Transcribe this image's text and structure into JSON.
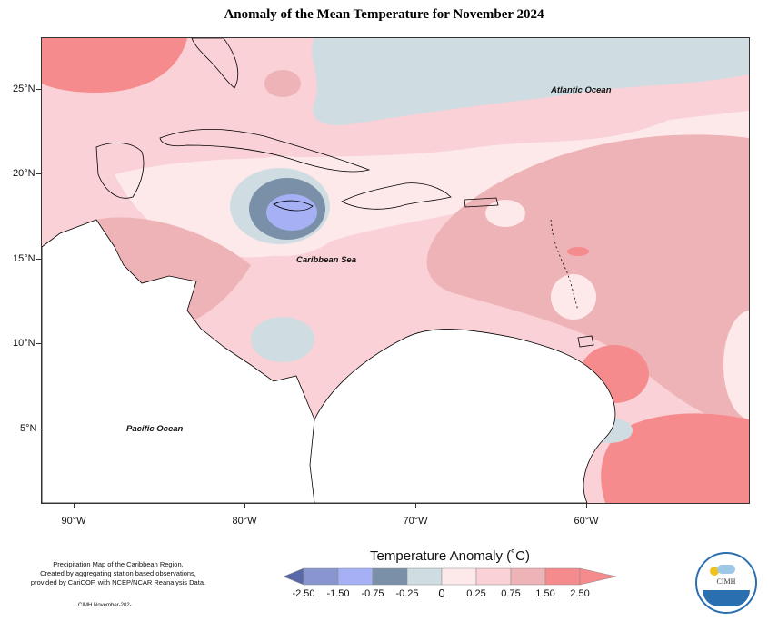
{
  "title": "Anomaly of the Mean Temperature for November 2024",
  "map": {
    "axes": {
      "lat_labels": [
        "25°N",
        "20°N",
        "15°N",
        "10°N",
        "5°N"
      ],
      "lon_labels": [
        "90°W",
        "80°W",
        "70°W",
        "60°W"
      ]
    },
    "place_labels": {
      "atlantic": "Atlantic Ocean",
      "caribbean": "Caribbean Sea",
      "pacific": "Pacific Ocean"
    },
    "colors": {
      "land_no_data": "#ffffff",
      "coastline": "#000000"
    }
  },
  "legend": {
    "title": "Temperature Anomaly (˚C)",
    "labels": [
      "-2.50",
      "-1.50",
      "-0.75",
      "-0.25",
      "0",
      "0.25",
      "0.75",
      "1.50",
      "2.50"
    ],
    "bins": [
      {
        "color": "#5868a8"
      },
      {
        "color": "#8895cf"
      },
      {
        "color": "#a6b1f5"
      },
      {
        "color": "#7a90a8"
      },
      {
        "color": "#cfdde3"
      },
      {
        "color": "#fde9ea"
      },
      {
        "color": "#f9d1d6"
      },
      {
        "color": "#eeb3b6"
      },
      {
        "color": "#f68b8e"
      },
      {
        "color": "#f68b8e"
      }
    ]
  },
  "footnote": {
    "lines": [
      "Precipitation Map of the Caribbean Region.",
      "Created by aggregating station based observations,",
      "provided by CariCOF, with NCEP/NCAR Reanalysis Data."
    ],
    "credit": "CIMH November-202-"
  },
  "logo": {
    "text": "CIMH"
  }
}
